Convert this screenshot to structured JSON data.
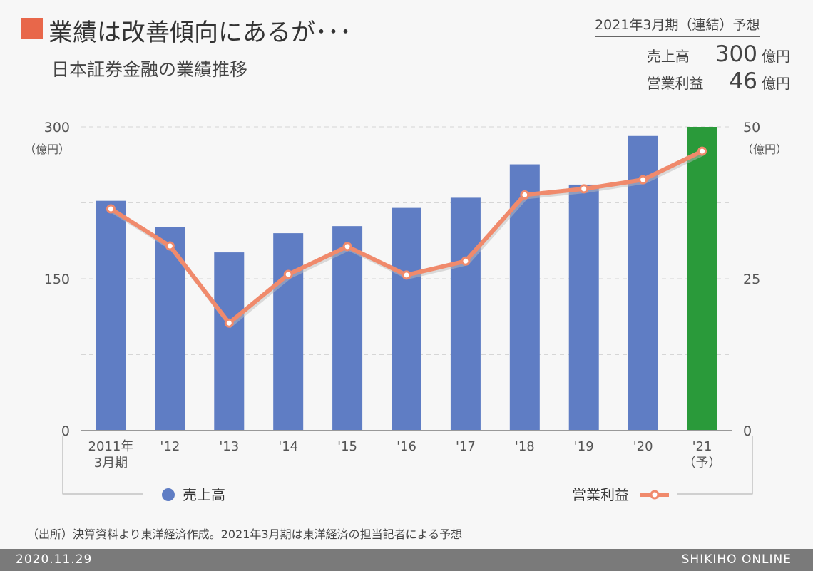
{
  "header": {
    "title": "業績は改善傾向にあるが･･･",
    "subtitle": "日本証券金融の業績推移"
  },
  "forecast": {
    "heading": "2021年3月期（連結）予想",
    "rows": [
      {
        "label": "売上高",
        "value": "300",
        "unit": "億円"
      },
      {
        "label": "営業利益",
        "value": "46",
        "unit": "億円"
      }
    ]
  },
  "chart_data": {
    "type": "bar+line",
    "categories": [
      "2011年\n3月期",
      "'12",
      "'13",
      "'14",
      "'15",
      "'16",
      "'17",
      "'18",
      "'19",
      "'20",
      "'21\n（予）"
    ],
    "series": [
      {
        "name": "売上高",
        "type": "bar",
        "axis": "left",
        "values": [
          227,
          201,
          176,
          195,
          202,
          220,
          230,
          263,
          243,
          291,
          300
        ],
        "color": "#5f7dc4",
        "forecast_color": "#2a9a3a"
      },
      {
        "name": "営業利益",
        "type": "line",
        "axis": "right",
        "values": [
          36.5,
          30.4,
          17.7,
          25.7,
          30.3,
          25.6,
          27.9,
          38.8,
          39.8,
          41.3,
          46
        ],
        "color": "#f08a6c"
      }
    ],
    "left_axis": {
      "ticks": [
        "0",
        "150",
        "300"
      ],
      "unit": "（億円）",
      "range": [
        0,
        300
      ]
    },
    "right_axis": {
      "ticks": [
        "0",
        "25",
        "50"
      ],
      "unit": "（億円）",
      "range": [
        0,
        50
      ]
    },
    "grid": true,
    "legend": "bottom"
  },
  "source": "（出所）決算資料より東洋経済作成。2021年3月期は東洋経済の担当記者による予想",
  "footer": {
    "date": "2020.11.29",
    "brand": "SHIKIHO ONLINE"
  }
}
